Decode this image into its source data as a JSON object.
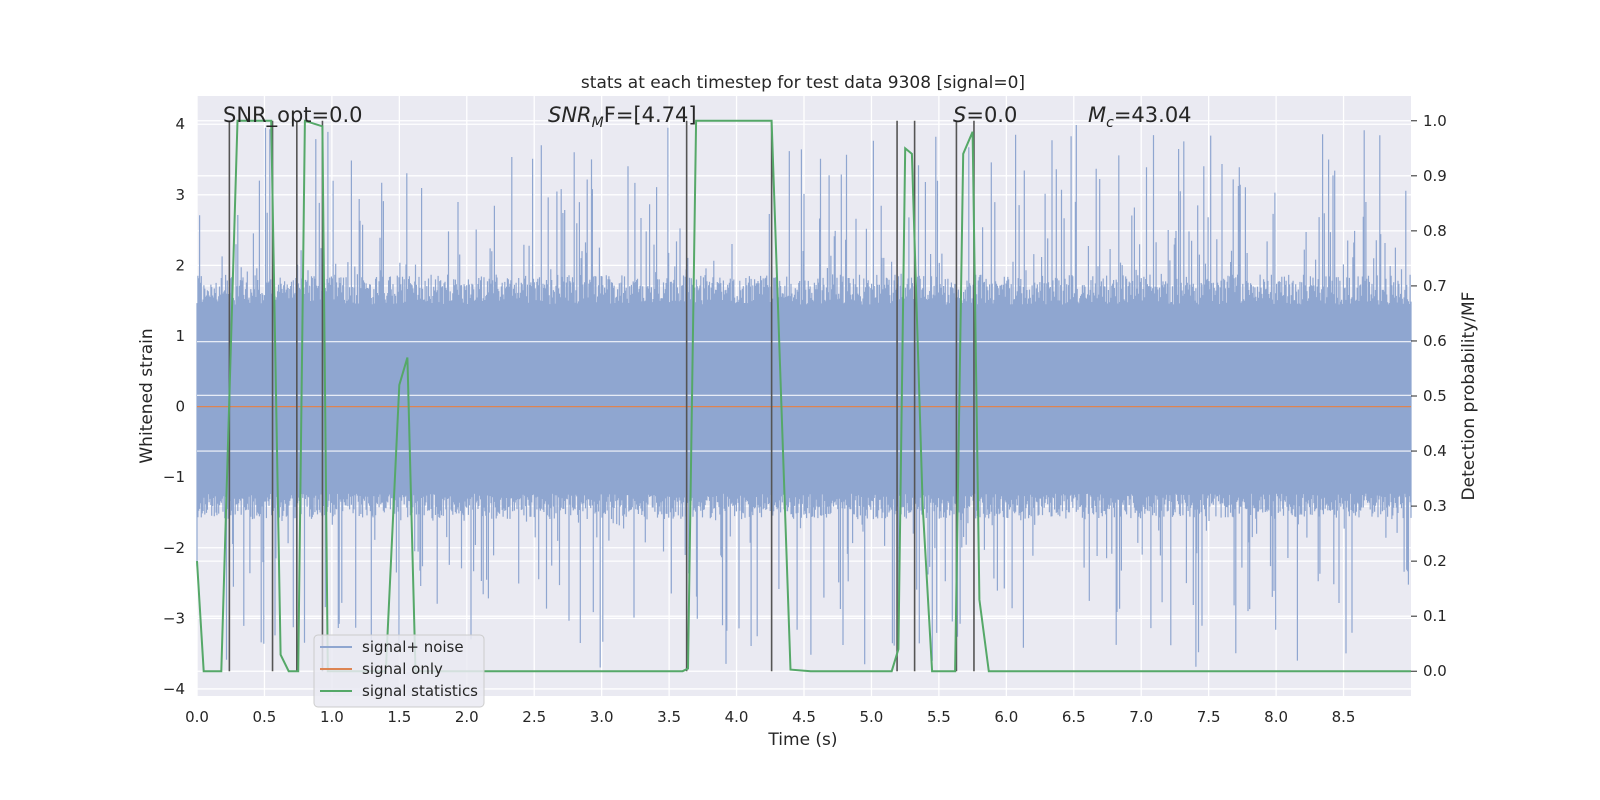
{
  "chart_data": {
    "type": "line",
    "title": "stats at each timestep for test data 9308 [signal=0]",
    "xlabel": "Time (s)",
    "ylabel": "Whitened strain",
    "ylabel_right": "Detection probability/MF",
    "xlim": [
      0.0,
      9.0
    ],
    "ylim": [
      -4.1,
      4.4
    ],
    "ylim_right": [
      -0.045,
      1.045
    ],
    "x_ticks": [
      "0.0",
      "0.5",
      "1.0",
      "1.5",
      "2.0",
      "2.5",
      "3.0",
      "3.5",
      "4.0",
      "4.5",
      "5.0",
      "5.5",
      "6.0",
      "6.5",
      "7.0",
      "7.5",
      "8.0",
      "8.5"
    ],
    "x_tick_values": [
      0.0,
      0.5,
      1.0,
      1.5,
      2.0,
      2.5,
      3.0,
      3.5,
      4.0,
      4.5,
      5.0,
      5.5,
      6.0,
      6.5,
      7.0,
      7.5,
      8.0,
      8.5
    ],
    "y_ticks": [
      "−4",
      "−3",
      "−2",
      "−1",
      "0",
      "1",
      "2",
      "3",
      "4"
    ],
    "y_tick_values": [
      -4,
      -3,
      -2,
      -1,
      0,
      1,
      2,
      3,
      4
    ],
    "y_ticks_right": [
      "0.0",
      "0.1",
      "0.2",
      "0.3",
      "0.4",
      "0.5",
      "0.6",
      "0.7",
      "0.8",
      "0.9",
      "1.0"
    ],
    "y_tick_values_right": [
      0.0,
      0.1,
      0.2,
      0.3,
      0.4,
      0.5,
      0.6,
      0.7,
      0.8,
      0.9,
      1.0
    ],
    "grid": true,
    "legend_position": "lower-left",
    "legend": [
      "signal+ noise",
      "signal only",
      "signal statistics"
    ],
    "colors": {
      "noise": "#8fa6d0",
      "signal": "#dd8452",
      "stats": "#55a868",
      "vlines": "#555555",
      "background": "#eaeaf2",
      "grid": "#ffffff"
    },
    "annotations": {
      "snr_opt": "SNR_opt=0.0",
      "snr_mf_base": "SNR",
      "snr_mf_sub": "M",
      "snr_mf_rest": "F=[4.74]",
      "s_label": "S",
      "s_value": "=0.0",
      "mc_base": "M",
      "mc_sub": "c",
      "mc_value": "=43.04"
    },
    "series": [
      {
        "name": "signal+ noise",
        "kind": "noise",
        "typical_range": [
          -1.45,
          1.7
        ],
        "peak_range": [
          -3.7,
          4.0
        ]
      },
      {
        "name": "signal only",
        "kind": "flat",
        "value": 0.0
      },
      {
        "name": "signal statistics",
        "axis": "right",
        "x": [
          0.0,
          0.05,
          0.18,
          0.3,
          0.55,
          0.62,
          0.68,
          0.75,
          0.8,
          0.93,
          0.97,
          1.1,
          1.35,
          1.4,
          1.5,
          1.56,
          1.62,
          1.7,
          3.6,
          3.64,
          3.7,
          4.26,
          4.4,
          4.55,
          5.15,
          5.2,
          5.25,
          5.3,
          5.38,
          5.45,
          5.62,
          5.68,
          5.75,
          5.8,
          5.87,
          9.0
        ],
        "y": [
          0.2,
          0.0,
          0.0,
          1.0,
          1.0,
          0.03,
          0.0,
          0.0,
          1.0,
          0.99,
          0.0,
          0.0,
          0.0,
          0.0,
          0.52,
          0.57,
          0.0,
          0.0,
          0.0,
          0.005,
          1.0,
          1.0,
          0.003,
          0.0,
          0.0,
          0.04,
          0.95,
          0.94,
          0.3,
          0.0,
          0.0,
          0.94,
          0.98,
          0.13,
          0.0,
          0.0
        ]
      }
    ],
    "vlines": [
      0.24,
      0.56,
      0.74,
      0.93,
      3.63,
      4.26,
      5.19,
      5.32,
      5.63,
      5.76
    ]
  }
}
